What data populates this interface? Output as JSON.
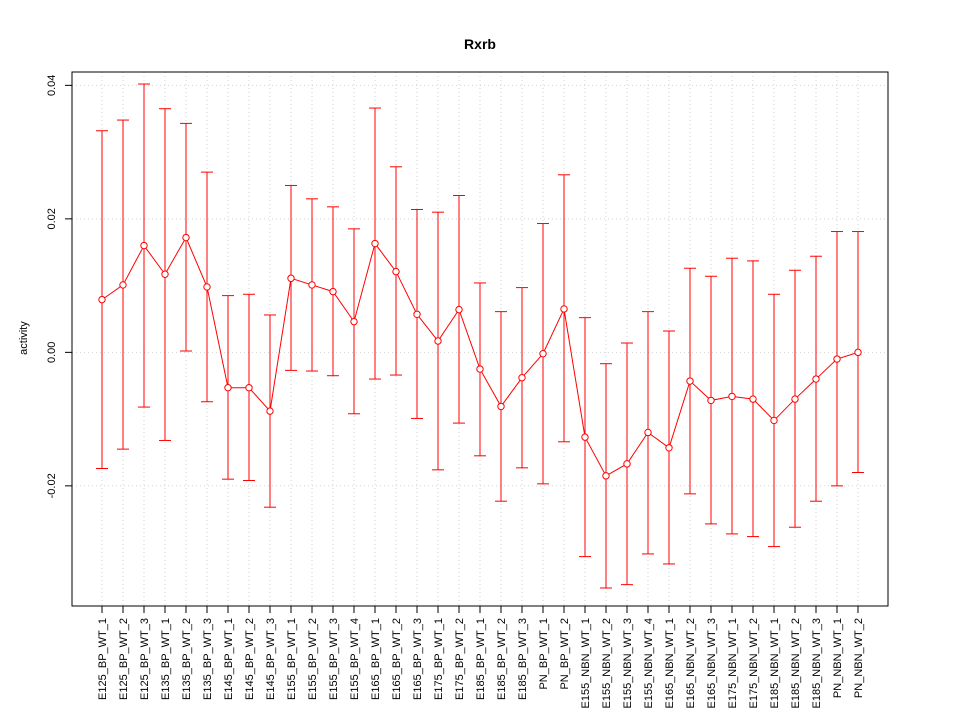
{
  "chart_data": {
    "type": "line",
    "title": "Rxrb",
    "xlabel": "",
    "ylabel": "activity",
    "ylim": [
      -0.038,
      0.042
    ],
    "yticks": [
      -0.02,
      0.0,
      0.02,
      0.04
    ],
    "ytick_labels": [
      "-0.02",
      "0.00",
      "0.02",
      "0.04"
    ],
    "grid": true,
    "categories": [
      "E125_BP_WT_1",
      "E125_BP_WT_2",
      "E125_BP_WT_3",
      "E135_BP_WT_1",
      "E135_BP_WT_2",
      "E135_BP_WT_3",
      "E145_BP_WT_1",
      "E145_BP_WT_2",
      "E145_BP_WT_3",
      "E155_BP_WT_1",
      "E155_BP_WT_2",
      "E155_BP_WT_3",
      "E155_BP_WT_4",
      "E165_BP_WT_1",
      "E165_BP_WT_2",
      "E165_BP_WT_3",
      "E175_BP_WT_1",
      "E175_BP_WT_2",
      "E185_BP_WT_1",
      "E185_BP_WT_2",
      "E185_BP_WT_3",
      "PN_BP_WT_1",
      "PN_BP_WT_2",
      "E155_NBN_WT_1",
      "E155_NBN_WT_2",
      "E155_NBN_WT_3",
      "E155_NBN_WT_4",
      "E165_NBN_WT_1",
      "E165_NBN_WT_2",
      "E165_NBN_WT_3",
      "E175_NBN_WT_1",
      "E175_NBN_WT_2",
      "E185_NBN_WT_1",
      "E185_NBN_WT_2",
      "E185_NBN_WT_3",
      "PN_NBN_WT_1",
      "PN_NBN_WT_2"
    ],
    "series": [
      {
        "color": "#ff0000",
        "values": [
          0.0079,
          0.0101,
          0.016,
          0.0117,
          0.0172,
          0.0098,
          -0.0053,
          -0.0053,
          -0.0088,
          0.0111,
          0.0101,
          0.0091,
          0.0046,
          0.0163,
          0.0121,
          0.0057,
          0.0017,
          0.0064,
          -0.0025,
          -0.0081,
          -0.0038,
          -0.0002,
          0.0065,
          -0.0127,
          -0.0185,
          -0.0167,
          -0.012,
          -0.0143,
          -0.0043,
          -0.0072,
          -0.0066,
          -0.007,
          -0.0102,
          -0.007,
          -0.004,
          -0.001,
          0.0
        ],
        "upper": [
          0.0332,
          0.0348,
          0.0402,
          0.0365,
          0.0343,
          0.027,
          0.0085,
          0.0087,
          0.0056,
          0.025,
          0.023,
          0.0218,
          0.0185,
          0.0366,
          0.0278,
          0.0214,
          0.021,
          0.0235,
          0.0104,
          0.0061,
          0.0097,
          0.0193,
          0.0266,
          0.0052,
          -0.0017,
          0.0014,
          0.0061,
          0.0032,
          0.0126,
          0.0114,
          0.0141,
          0.0137,
          0.0087,
          0.0123,
          0.0144,
          0.0181,
          0.0181
        ],
        "lower": [
          -0.0174,
          -0.0145,
          -0.0082,
          -0.0132,
          0.0002,
          -0.0074,
          -0.019,
          -0.0192,
          -0.0232,
          -0.0027,
          -0.0028,
          -0.0035,
          -0.0092,
          -0.004,
          -0.0034,
          -0.0099,
          -0.0176,
          -0.0106,
          -0.0155,
          -0.0223,
          -0.0173,
          -0.0197,
          -0.0134,
          -0.0306,
          -0.0353,
          -0.0348,
          -0.0302,
          -0.0317,
          -0.0212,
          -0.0257,
          -0.0272,
          -0.0276,
          -0.0291,
          -0.0262,
          -0.0223,
          -0.02,
          -0.018
        ]
      }
    ]
  }
}
